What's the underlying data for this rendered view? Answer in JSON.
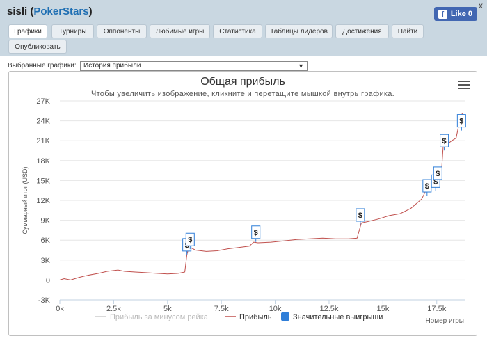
{
  "window": {
    "player": "sisli",
    "site": "PokerStars",
    "close_label": "x",
    "like_label": "Like 0",
    "fb_glyph": "f"
  },
  "tabs": [
    {
      "label": "Графики",
      "active": true
    },
    {
      "label": "Турниры",
      "active": false
    },
    {
      "label": "Оппоненты",
      "active": false
    },
    {
      "label": "Любимые игры",
      "active": false
    },
    {
      "label": "Статистика",
      "active": false
    },
    {
      "label": "Таблицы лидеров",
      "active": false
    },
    {
      "label": "Достижения",
      "active": false
    },
    {
      "label": "Найти",
      "active": false
    },
    {
      "label": "Опубликовать",
      "active": false
    }
  ],
  "selector": {
    "label": "Выбранные графики:",
    "value": "История прибыли"
  },
  "colors": {
    "header_bg": "#c9d7e1",
    "profit_line": "#c0504d",
    "rake_line": "#cccccc",
    "big_win_marker": "#2f7ed8",
    "grid": "#e6e6e6"
  },
  "chart_data": {
    "type": "line",
    "title": "Общая прибыль",
    "subtitle": "Чтобы увеличить изображение, кликните и перетащите мышкой внутрь графика.",
    "ylabel": "Суммарный итог (USD)",
    "xlabel": "Номер игры",
    "xlim": [
      0,
      18800
    ],
    "ylim": [
      -3000,
      27000
    ],
    "y_ticks": [
      -3000,
      0,
      3000,
      6000,
      9000,
      12000,
      15000,
      18000,
      21000,
      24000,
      27000
    ],
    "y_tick_labels": [
      "-3K",
      "0",
      "3K",
      "6K",
      "9K",
      "12K",
      "15K",
      "18K",
      "21K",
      "24K",
      "27K"
    ],
    "x_ticks": [
      0,
      2500,
      5000,
      7500,
      10000,
      12500,
      15000,
      17500
    ],
    "x_tick_labels": [
      "0k",
      "2.5k",
      "5k",
      "7.5k",
      "10k",
      "12.5k",
      "15k",
      "17.5k"
    ],
    "grid": true,
    "legend_position": "bottom",
    "series": [
      {
        "name": "Прибыль за минусом рейка",
        "visible": false,
        "x": [],
        "y": []
      },
      {
        "name": "Прибыль",
        "x": [
          0,
          200,
          500,
          900,
          1300,
          1800,
          2200,
          2700,
          3000,
          3500,
          4000,
          4500,
          5000,
          5500,
          5800,
          5900,
          6000,
          6300,
          6800,
          7300,
          7800,
          8300,
          8800,
          9000,
          9200,
          9800,
          10400,
          11000,
          11600,
          12200,
          12800,
          13400,
          13800,
          14000,
          14300,
          14800,
          15300,
          15800,
          16300,
          16800,
          17000,
          17200,
          17300,
          17400,
          17500,
          17600,
          17700,
          17800,
          18000,
          18200,
          18400,
          18500,
          18600,
          18700
        ],
        "y": [
          0,
          200,
          0,
          400,
          700,
          1000,
          1300,
          1500,
          1300,
          1200,
          1100,
          1000,
          900,
          1000,
          1200,
          3800,
          5000,
          4500,
          4300,
          4400,
          4700,
          4900,
          5100,
          5700,
          5600,
          5700,
          5900,
          6100,
          6200,
          6300,
          6200,
          6200,
          6300,
          8600,
          8800,
          9200,
          9700,
          10000,
          10800,
          12200,
          13500,
          14000,
          14100,
          14300,
          15000,
          15200,
          15300,
          20100,
          20500,
          21000,
          21400,
          23000,
          24500,
          25200
        ]
      },
      {
        "name": "Значительные выигрыши",
        "type": "markers",
        "symbol": "$",
        "x": [
          5900,
          6050,
          9100,
          13950,
          17050,
          17450,
          17550,
          17850,
          18650
        ],
        "y": [
          5300,
          6100,
          7200,
          9800,
          14200,
          14900,
          16100,
          21000,
          24000
        ]
      }
    ]
  }
}
